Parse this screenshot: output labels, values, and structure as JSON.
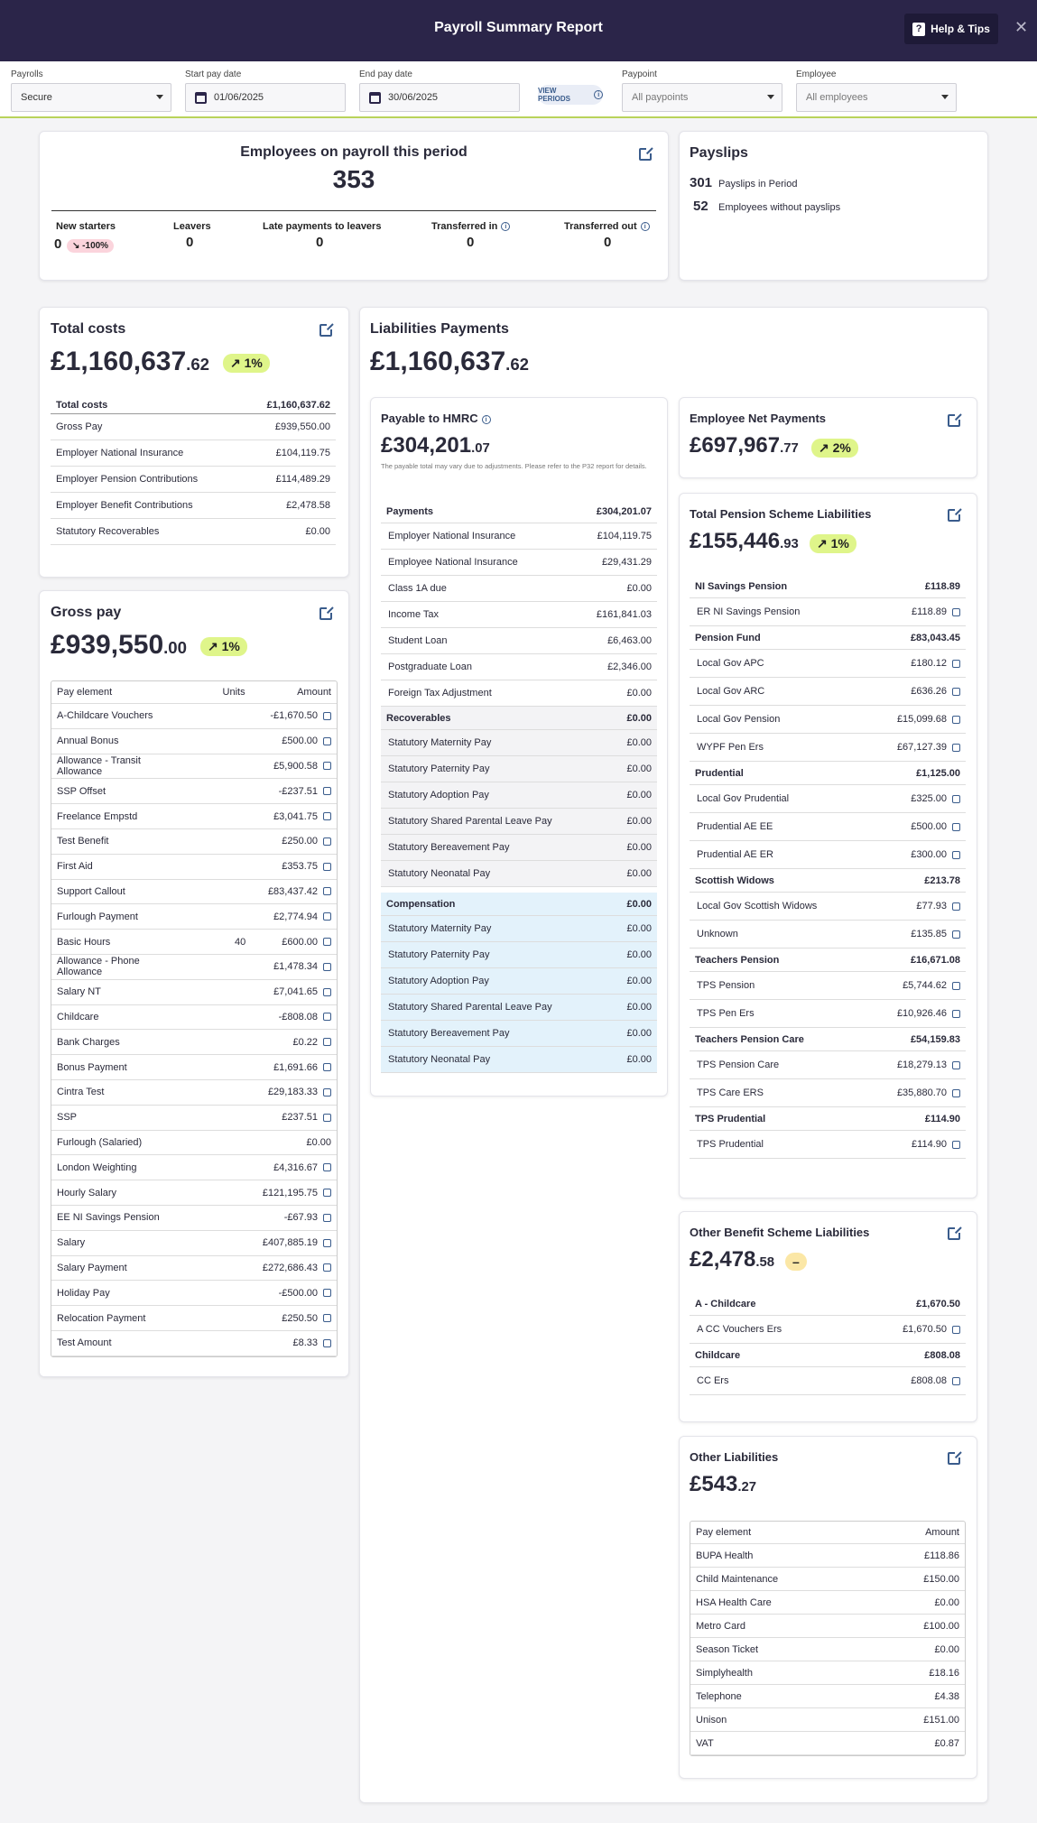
{
  "header": {
    "title": "Payroll Summary Report",
    "help_label": "Help & Tips",
    "help_icon": "?",
    "close_icon": "✕"
  },
  "filters": {
    "payrolls_label": "Payrolls",
    "payrolls_value": "Secure",
    "start_label": "Start pay date",
    "start_value": "01/06/2025",
    "end_label": "End pay date",
    "end_value": "30/06/2025",
    "view_periods": "VIEW PERIODS",
    "info_icon": "i",
    "paypoint_label": "Paypoint",
    "paypoint_value": "All paypoints",
    "employee_label": "Employee",
    "employee_value": "All employees"
  },
  "employees": {
    "title": "Employees on payroll this period",
    "count": "353",
    "new_starters_label": "New starters",
    "new_starters_value": "0",
    "new_starters_change": "-100%",
    "leavers_label": "Leavers",
    "leavers_value": "0",
    "late_label": "Late payments to leavers",
    "late_value": "0",
    "tin_label": "Transferred in",
    "tin_value": "0",
    "tout_label": "Transferred out",
    "tout_value": "0"
  },
  "payslips": {
    "title": "Payslips",
    "in_period_value": "301",
    "in_period_label": "Payslips in Period",
    "without_value": "52",
    "without_label": "Employees without payslips"
  },
  "total_costs": {
    "title": "Total costs",
    "amount_main": "£1,160,637",
    "amount_pence": ".62",
    "change": "1%",
    "header_label": "Total costs",
    "header_value": "£1,160,637.62",
    "rows": [
      {
        "label": "Gross Pay",
        "value": "£939,550.00"
      },
      {
        "label": "Employer National Insurance",
        "value": "£104,119.75"
      },
      {
        "label": "Employer Pension Contributions",
        "value": "£114,489.29"
      },
      {
        "label": "Employer Benefit Contributions",
        "value": "£2,478.58"
      },
      {
        "label": "Statutory Recoverables",
        "value": "£0.00"
      }
    ]
  },
  "gross_pay": {
    "title": "Gross pay",
    "amount_main": "£939,550",
    "amount_pence": ".00",
    "change": "1%",
    "col_element": "Pay element",
    "col_units": "Units",
    "col_amount": "Amount",
    "rows": [
      {
        "label": "A-Childcare Vouchers",
        "units": "",
        "value": "-£1,670.50"
      },
      {
        "label": "Annual Bonus",
        "units": "",
        "value": "£500.00"
      },
      {
        "label": "Allowance - Transit Allowance",
        "units": "",
        "value": "£5,900.58"
      },
      {
        "label": "SSP Offset",
        "units": "",
        "value": "-£237.51"
      },
      {
        "label": "Freelance Empstd",
        "units": "",
        "value": "£3,041.75"
      },
      {
        "label": "Test Benefit",
        "units": "",
        "value": "£250.00"
      },
      {
        "label": "First Aid",
        "units": "",
        "value": "£353.75"
      },
      {
        "label": "Support Callout",
        "units": "",
        "value": "£83,437.42"
      },
      {
        "label": "Furlough Payment",
        "units": "",
        "value": "£2,774.94"
      },
      {
        "label": "Basic Hours",
        "units": "40",
        "value": "£600.00"
      },
      {
        "label": "Allowance - Phone Allowance",
        "units": "",
        "value": "£1,478.34"
      },
      {
        "label": "Salary NT",
        "units": "",
        "value": "£7,041.65"
      },
      {
        "label": "Childcare",
        "units": "",
        "value": "-£808.08"
      },
      {
        "label": "Bank Charges",
        "units": "",
        "value": "£0.22"
      },
      {
        "label": "Bonus Payment",
        "units": "",
        "value": "£1,691.66"
      },
      {
        "label": "Cintra Test",
        "units": "",
        "value": "£29,183.33"
      },
      {
        "label": "SSP",
        "units": "",
        "value": "£237.51"
      },
      {
        "label": "Furlough (Salaried)",
        "units": "",
        "value": "£0.00"
      },
      {
        "label": "London Weighting",
        "units": "",
        "value": "£4,316.67"
      },
      {
        "label": "Hourly Salary",
        "units": "",
        "value": "£121,195.75"
      },
      {
        "label": "EE NI Savings Pension",
        "units": "",
        "value": "-£67.93"
      },
      {
        "label": "Salary",
        "units": "",
        "value": "£407,885.19"
      },
      {
        "label": "Salary Payment",
        "units": "",
        "value": "£272,686.43"
      },
      {
        "label": "Holiday Pay",
        "units": "",
        "value": "-£500.00"
      },
      {
        "label": "Relocation Payment",
        "units": "",
        "value": "£250.50"
      },
      {
        "label": "Test Amount",
        "units": "",
        "value": "£8.33"
      }
    ]
  },
  "liabilities": {
    "title": "Liabilities Payments",
    "amount_main": "£1,160,637",
    "amount_pence": ".62"
  },
  "hmrc": {
    "title": "Payable to HMRC",
    "amount_main": "£304,201",
    "amount_pence": ".07",
    "note": "The payable total may vary due to adjustments. Please refer to the P32 report for details.",
    "payments_label": "Payments",
    "payments_value": "£304,201.07",
    "payments": [
      {
        "label": "Employer National Insurance",
        "value": "£104,119.75"
      },
      {
        "label": "Employee National Insurance",
        "value": "£29,431.29"
      },
      {
        "label": "Class 1A due",
        "value": "£0.00"
      },
      {
        "label": "Income Tax",
        "value": "£161,841.03"
      },
      {
        "label": "Student Loan",
        "value": "£6,463.00"
      },
      {
        "label": "Postgraduate Loan",
        "value": "£2,346.00"
      },
      {
        "label": "Foreign Tax Adjustment",
        "value": "£0.00"
      }
    ],
    "recoverables_label": "Recoverables",
    "recoverables_value": "£0.00",
    "recoverables": [
      {
        "label": "Statutory Maternity Pay",
        "value": "£0.00"
      },
      {
        "label": "Statutory Paternity Pay",
        "value": "£0.00"
      },
      {
        "label": "Statutory Adoption Pay",
        "value": "£0.00"
      },
      {
        "label": "Statutory Shared Parental Leave Pay",
        "value": "£0.00"
      },
      {
        "label": "Statutory Bereavement Pay",
        "value": "£0.00"
      },
      {
        "label": "Statutory Neonatal Pay",
        "value": "£0.00"
      }
    ],
    "compensation_label": "Compensation",
    "compensation_value": "£0.00",
    "compensation": [
      {
        "label": "Statutory Maternity Pay",
        "value": "£0.00"
      },
      {
        "label": "Statutory Paternity Pay",
        "value": "£0.00"
      },
      {
        "label": "Statutory Adoption Pay",
        "value": "£0.00"
      },
      {
        "label": "Statutory Shared Parental Leave Pay",
        "value": "£0.00"
      },
      {
        "label": "Statutory Bereavement Pay",
        "value": "£0.00"
      },
      {
        "label": "Statutory Neonatal Pay",
        "value": "£0.00"
      }
    ]
  },
  "net_payments": {
    "title": "Employee Net Payments",
    "amount_main": "£697,967",
    "amount_pence": ".77",
    "change": "2%"
  },
  "pension": {
    "title": "Total Pension Scheme Liabilities",
    "amount_main": "£155,446",
    "amount_pence": ".93",
    "change": "1%",
    "groups": [
      {
        "label": "NI Savings Pension",
        "value": "£118.89",
        "rows": [
          {
            "label": "ER NI Savings Pension",
            "value": "£118.89"
          }
        ]
      },
      {
        "label": "Pension Fund",
        "value": "£83,043.45",
        "rows": [
          {
            "label": "Local Gov APC",
            "value": "£180.12"
          },
          {
            "label": "Local Gov ARC",
            "value": "£636.26"
          },
          {
            "label": "Local Gov Pension",
            "value": "£15,099.68"
          },
          {
            "label": "WYPF Pen Ers",
            "value": "£67,127.39"
          }
        ]
      },
      {
        "label": "Prudential",
        "value": "£1,125.00",
        "rows": [
          {
            "label": "Local Gov Prudential",
            "value": "£325.00"
          },
          {
            "label": "Prudential AE EE",
            "value": "£500.00"
          },
          {
            "label": "Prudential AE ER",
            "value": "£300.00"
          }
        ]
      },
      {
        "label": "Scottish Widows",
        "value": "£213.78",
        "rows": [
          {
            "label": "Local Gov Scottish Widows",
            "value": "£77.93"
          },
          {
            "label": "Unknown",
            "value": "£135.85"
          }
        ]
      },
      {
        "label": "Teachers Pension",
        "value": "£16,671.08",
        "rows": [
          {
            "label": "TPS Pension",
            "value": "£5,744.62"
          },
          {
            "label": "TPS Pen Ers",
            "value": "£10,926.46"
          }
        ]
      },
      {
        "label": "Teachers Pension Care",
        "value": "£54,159.83",
        "rows": [
          {
            "label": "TPS Pension Care",
            "value": "£18,279.13"
          },
          {
            "label": "TPS Care ERS",
            "value": "£35,880.70"
          }
        ]
      },
      {
        "label": "TPS Prudential",
        "value": "£114.90",
        "rows": [
          {
            "label": "TPS Prudential",
            "value": "£114.90"
          }
        ]
      }
    ]
  },
  "benefit": {
    "title": "Other Benefit Scheme Liabilities",
    "amount_main": "£2,478",
    "amount_pence": ".58",
    "change": "–",
    "groups": [
      {
        "label": "A - Childcare",
        "value": "£1,670.50",
        "rows": [
          {
            "label": "A CC Vouchers Ers",
            "value": "£1,670.50"
          }
        ]
      },
      {
        "label": "Childcare",
        "value": "£808.08",
        "rows": [
          {
            "label": "CC Ers",
            "value": "£808.08"
          }
        ]
      }
    ]
  },
  "other": {
    "title": "Other Liabilities",
    "amount_main": "£543",
    "amount_pence": ".27",
    "col_element": "Pay element",
    "col_amount": "Amount",
    "rows": [
      {
        "label": "BUPA Health",
        "value": "£118.86"
      },
      {
        "label": "Child Maintenance",
        "value": "£150.00"
      },
      {
        "label": "HSA Health Care",
        "value": "£0.00"
      },
      {
        "label": "Metro Card",
        "value": "£100.00"
      },
      {
        "label": "Season Ticket",
        "value": "£0.00"
      },
      {
        "label": "Simplyhealth",
        "value": "£18.16"
      },
      {
        "label": "Telephone",
        "value": "£4.38"
      },
      {
        "label": "Unison",
        "value": "£151.00"
      },
      {
        "label": "VAT",
        "value": "£0.87"
      }
    ]
  },
  "colors": {
    "header_bg": "#2b2549",
    "accent": "#b9d35a",
    "pill_up": "#dff58a",
    "pill_down": "#fbd4dc",
    "link": "#3a5c8c"
  }
}
